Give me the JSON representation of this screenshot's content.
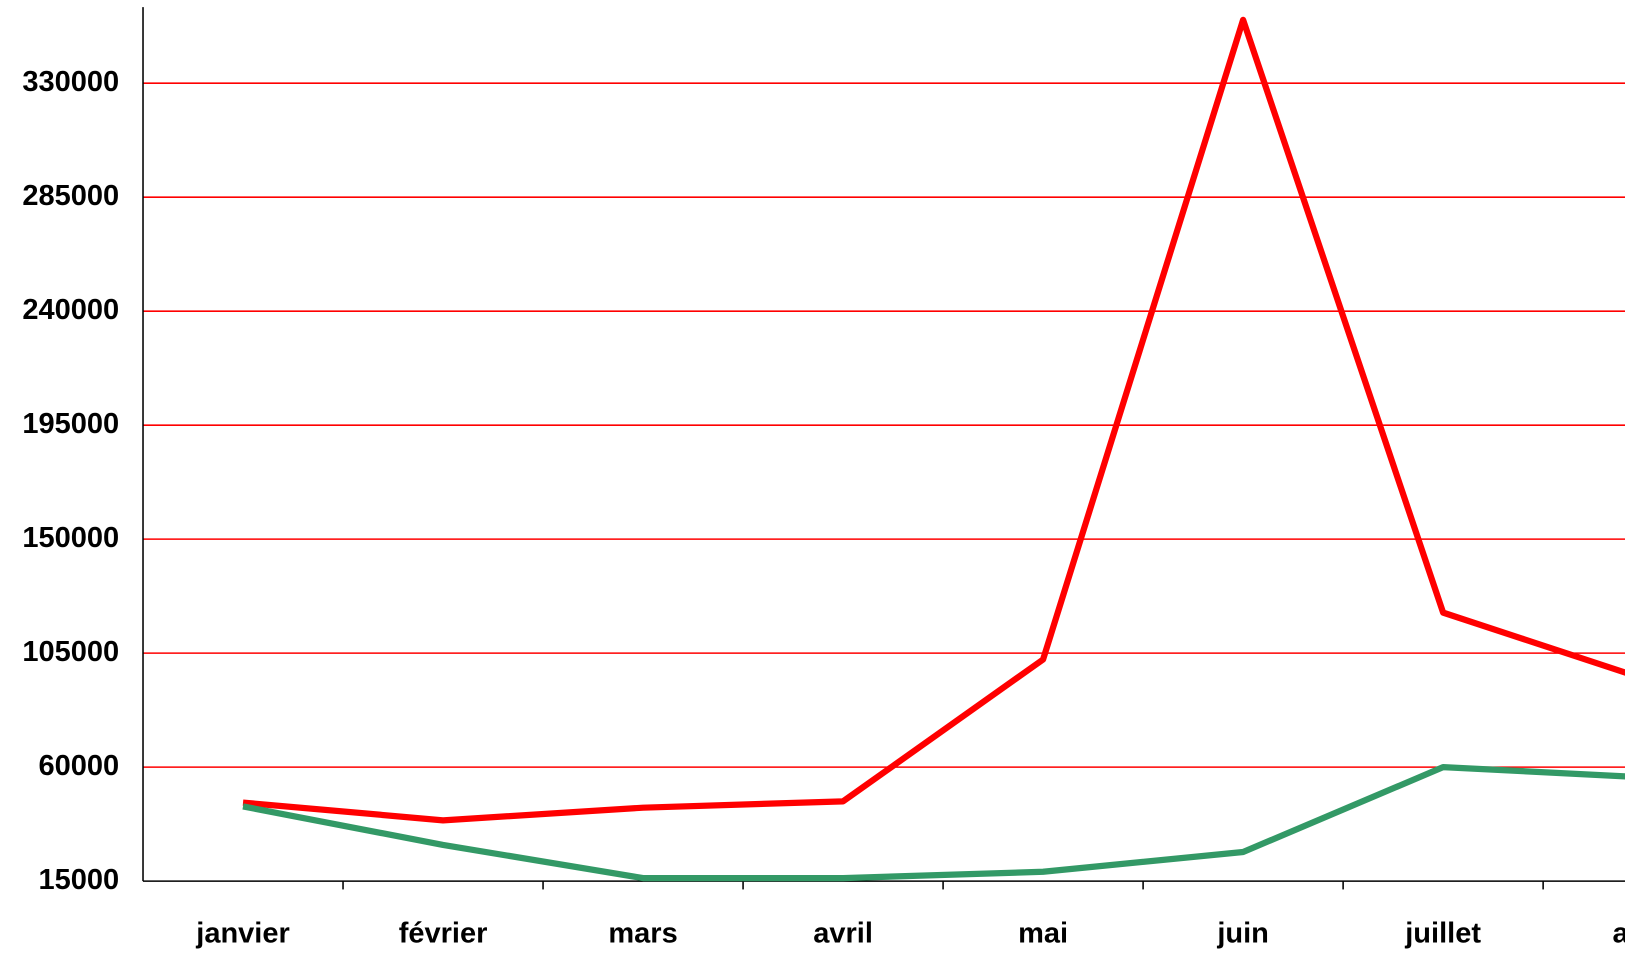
{
  "chart_data": {
    "type": "line",
    "categories": [
      "janvier",
      "février",
      "mars",
      "avril",
      "mai",
      "juin",
      "juillet",
      "août"
    ],
    "series": [
      {
        "color": "#ff0000",
        "values": [
          46000,
          39000,
          44000,
          46500,
          102500,
          355000,
          121000,
          95000
        ]
      },
      {
        "color": "#339966",
        "values": [
          44500,
          29300,
          16200,
          16200,
          18700,
          26500,
          60000,
          56000
        ]
      }
    ],
    "ylim": [
      15000,
      360000
    ],
    "yticks": [
      15000,
      60000,
      105000,
      150000,
      195000,
      240000,
      285000,
      330000
    ],
    "grid": true,
    "grid_color": "#ff0000"
  }
}
